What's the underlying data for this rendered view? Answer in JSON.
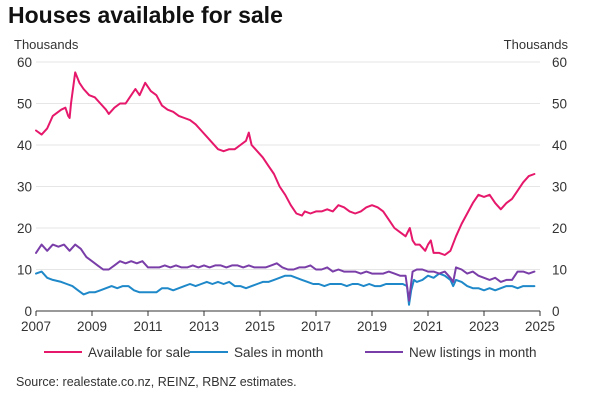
{
  "chart_data": {
    "type": "line",
    "title": "Houses available for sale",
    "left_unit": "Thousands",
    "right_unit": "Thousands",
    "ylim": [
      0,
      60
    ],
    "yticks": [
      "0",
      "10",
      "20",
      "30",
      "40",
      "50",
      "60"
    ],
    "xlim": [
      2007,
      2025
    ],
    "xticks": [
      "2007",
      "2009",
      "2011",
      "2013",
      "2015",
      "2017",
      "2019",
      "2021",
      "2023",
      "2025"
    ],
    "grid": "horizontal",
    "legend_position": "bottom",
    "source": "Source: realestate.co.nz, REINZ, RBNZ estimates.",
    "series": [
      {
        "name": "Available for sale",
        "color": "#e6186b",
        "x": [
          2007.0,
          2007.2,
          2007.4,
          2007.6,
          2007.9,
          2008.05,
          2008.15,
          2008.2,
          2008.25,
          2008.4,
          2008.55,
          2008.7,
          2008.9,
          2009.1,
          2009.3,
          2009.5,
          2009.6,
          2009.8,
          2010.0,
          2010.2,
          2010.4,
          2010.55,
          2010.7,
          2010.9,
          2011.1,
          2011.3,
          2011.5,
          2011.7,
          2011.9,
          2012.1,
          2012.3,
          2012.5,
          2012.7,
          2012.9,
          2013.1,
          2013.3,
          2013.5,
          2013.7,
          2013.9,
          2014.1,
          2014.3,
          2014.5,
          2014.6,
          2014.7,
          2014.9,
          2015.1,
          2015.3,
          2015.5,
          2015.7,
          2015.9,
          2016.1,
          2016.3,
          2016.5,
          2016.6,
          2016.8,
          2017.0,
          2017.2,
          2017.4,
          2017.6,
          2017.8,
          2018.0,
          2018.2,
          2018.4,
          2018.6,
          2018.8,
          2019.0,
          2019.2,
          2019.4,
          2019.6,
          2019.8,
          2020.0,
          2020.2,
          2020.35,
          2020.45,
          2020.55,
          2020.7,
          2020.9,
          2021.0,
          2021.1,
          2021.2,
          2021.4,
          2021.6,
          2021.8,
          2022.0,
          2022.2,
          2022.4,
          2022.6,
          2022.8,
          2023.0,
          2023.2,
          2023.4,
          2023.6,
          2023.8,
          2024.0,
          2024.2,
          2024.4,
          2024.6,
          2024.8
        ],
        "values": [
          43.5,
          42.5,
          44,
          47,
          48.5,
          49,
          47,
          46.5,
          50,
          57.5,
          55,
          53.5,
          52,
          51.5,
          50,
          48.5,
          47.5,
          49,
          50,
          50,
          52,
          53.5,
          52,
          55,
          53,
          52,
          49.5,
          48.5,
          48,
          47,
          46.5,
          46,
          45,
          43.5,
          42,
          40.5,
          39,
          38.5,
          39,
          39,
          40,
          41,
          43,
          40,
          38.5,
          37,
          35,
          33,
          30,
          28,
          25.5,
          23.5,
          23,
          24,
          23.5,
          24,
          24,
          24.5,
          24,
          25.5,
          25,
          24,
          23.5,
          24,
          25,
          25.5,
          25,
          24,
          22,
          20,
          19,
          18,
          20,
          17,
          16,
          16,
          14.5,
          16,
          17,
          14,
          14,
          13.5,
          14.5,
          18,
          21,
          23.5,
          26,
          28,
          27.5,
          28,
          26,
          24.5,
          26,
          27,
          29,
          31,
          32.5,
          33
        ]
      },
      {
        "name": "Sales in month",
        "color": "#1e88c9",
        "x": [
          2007.0,
          2007.2,
          2007.4,
          2007.6,
          2007.9,
          2008.1,
          2008.3,
          2008.5,
          2008.7,
          2008.9,
          2009.1,
          2009.3,
          2009.5,
          2009.7,
          2009.9,
          2010.1,
          2010.3,
          2010.5,
          2010.7,
          2010.9,
          2011.1,
          2011.3,
          2011.5,
          2011.7,
          2011.9,
          2012.1,
          2012.3,
          2012.5,
          2012.7,
          2012.9,
          2013.1,
          2013.3,
          2013.5,
          2013.7,
          2013.9,
          2014.1,
          2014.3,
          2014.5,
          2014.7,
          2014.9,
          2015.1,
          2015.3,
          2015.5,
          2015.7,
          2015.9,
          2016.1,
          2016.3,
          2016.5,
          2016.7,
          2016.9,
          2017.1,
          2017.3,
          2017.5,
          2017.7,
          2017.9,
          2018.1,
          2018.3,
          2018.5,
          2018.7,
          2018.9,
          2019.1,
          2019.3,
          2019.5,
          2019.7,
          2019.9,
          2020.1,
          2020.25,
          2020.32,
          2020.4,
          2020.5,
          2020.6,
          2020.8,
          2021.0,
          2021.2,
          2021.4,
          2021.6,
          2021.8,
          2021.9,
          2022.0,
          2022.2,
          2022.4,
          2022.6,
          2022.8,
          2023.0,
          2023.2,
          2023.4,
          2023.6,
          2023.8,
          2024.0,
          2024.2,
          2024.4,
          2024.6,
          2024.8
        ],
        "values": [
          9,
          9.5,
          8,
          7.5,
          7,
          6.5,
          6,
          5,
          4,
          4.5,
          4.5,
          5,
          5.5,
          6,
          5.5,
          6,
          6,
          5,
          4.5,
          4.5,
          4.5,
          4.5,
          5.5,
          5.5,
          5,
          5.5,
          6,
          6.5,
          6,
          6.5,
          7,
          6.5,
          7,
          6.5,
          7,
          6,
          6,
          5.5,
          6,
          6.5,
          7,
          7,
          7.5,
          8,
          8.5,
          8.5,
          8,
          7.5,
          7,
          6.5,
          6.5,
          6,
          6.5,
          6.5,
          6.5,
          6,
          6.5,
          6.5,
          6,
          6.5,
          6,
          6,
          6.5,
          6.5,
          6.5,
          6.5,
          6,
          1.5,
          5,
          7.5,
          7,
          7.5,
          8.5,
          8,
          9,
          8.5,
          7.5,
          6,
          7.5,
          7,
          6,
          5.5,
          5.5,
          5,
          5.5,
          5,
          5.5,
          6,
          6,
          5.5,
          6,
          6,
          6
        ]
      },
      {
        "name": "New listings in month",
        "color": "#7a3ea8",
        "x": [
          2007.0,
          2007.2,
          2007.4,
          2007.6,
          2007.8,
          2008.0,
          2008.2,
          2008.4,
          2008.6,
          2008.8,
          2009.0,
          2009.2,
          2009.4,
          2009.6,
          2009.8,
          2010.0,
          2010.2,
          2010.4,
          2010.6,
          2010.8,
          2011.0,
          2011.2,
          2011.4,
          2011.6,
          2011.8,
          2012.0,
          2012.2,
          2012.4,
          2012.6,
          2012.8,
          2013.0,
          2013.2,
          2013.4,
          2013.6,
          2013.8,
          2014.0,
          2014.2,
          2014.4,
          2014.6,
          2014.8,
          2015.0,
          2015.2,
          2015.4,
          2015.6,
          2015.8,
          2016.0,
          2016.2,
          2016.4,
          2016.6,
          2016.8,
          2017.0,
          2017.2,
          2017.4,
          2017.6,
          2017.8,
          2018.0,
          2018.2,
          2018.4,
          2018.6,
          2018.8,
          2019.0,
          2019.2,
          2019.4,
          2019.6,
          2019.8,
          2020.0,
          2020.2,
          2020.32,
          2020.45,
          2020.6,
          2020.8,
          2021.0,
          2021.2,
          2021.4,
          2021.6,
          2021.8,
          2021.9,
          2022.0,
          2022.2,
          2022.4,
          2022.6,
          2022.8,
          2023.0,
          2023.2,
          2023.4,
          2023.6,
          2023.8,
          2024.0,
          2024.2,
          2024.4,
          2024.6,
          2024.8
        ],
        "values": [
          14,
          16,
          14.5,
          16,
          15.5,
          16,
          14.5,
          16,
          15,
          13,
          12,
          11,
          10,
          10,
          11,
          12,
          11.5,
          12,
          11.5,
          12,
          10.5,
          10.5,
          10.5,
          11,
          10.5,
          11,
          10.5,
          10.5,
          11,
          10.5,
          11,
          10.5,
          11,
          11,
          10.5,
          11,
          11,
          10.5,
          11,
          10.5,
          10.5,
          10.5,
          11,
          11.5,
          10.5,
          10,
          10,
          10.5,
          10.5,
          11,
          10,
          10,
          10.5,
          9.5,
          10,
          9.5,
          9.5,
          9.5,
          9,
          9.5,
          9,
          9,
          9,
          9.5,
          9,
          8.5,
          8.5,
          2.5,
          9.5,
          10,
          10,
          9.5,
          9.5,
          9,
          9.5,
          8,
          7,
          10.5,
          10,
          9,
          9.5,
          8.5,
          8,
          7.5,
          8,
          7,
          7.5,
          7.5,
          9.5,
          9.5,
          9,
          9.5
        ]
      }
    ]
  }
}
